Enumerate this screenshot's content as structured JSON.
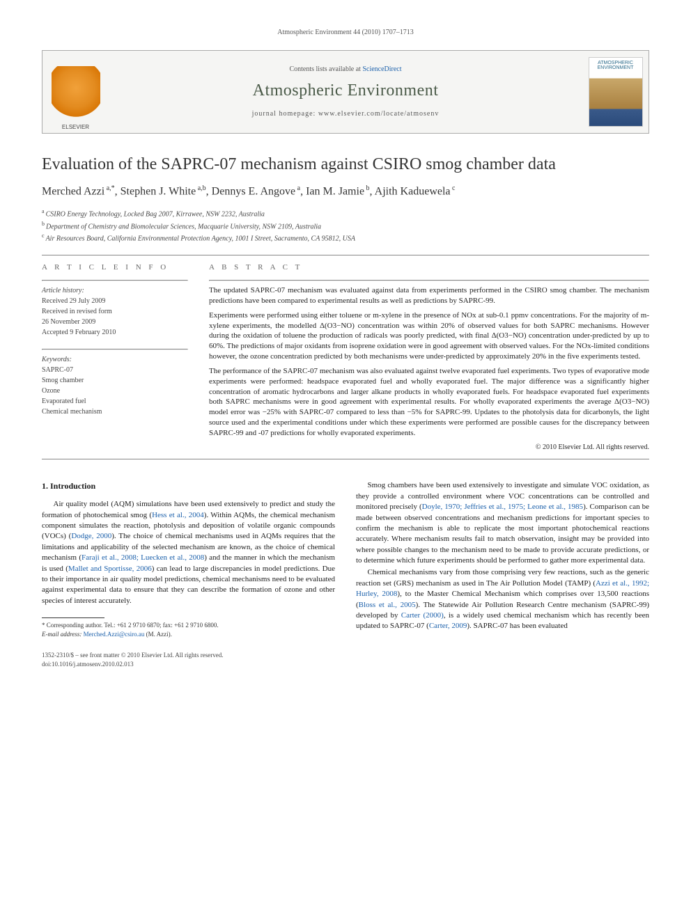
{
  "running_head": "Atmospheric Environment 44 (2010) 1707–1713",
  "masthead": {
    "contents_prefix": "Contents lists available at ",
    "contents_link": "ScienceDirect",
    "journal_name": "Atmospheric Environment",
    "homepage_label": "journal homepage: www.elsevier.com/locate/atmosenv",
    "publisher_logo_label": "ELSEVIER",
    "cover_caption": "ATMOSPHERIC ENVIRONMENT"
  },
  "article": {
    "title": "Evaluation of the SAPRC-07 mechanism against CSIRO smog chamber data",
    "authors_html_parts": [
      "Merched Azzi",
      " a,*",
      ", Stephen J. White",
      " a,b",
      ", Dennys E. Angove",
      " a",
      ", Ian M. Jamie",
      " b",
      ", Ajith Kaduewela",
      " c"
    ],
    "affiliations": [
      {
        "sup": "a",
        "text": "CSIRO Energy Technology, Locked Bag 2007, Kirrawee, NSW 2232, Australia"
      },
      {
        "sup": "b",
        "text": "Department of Chemistry and Biomolecular Sciences, Macquarie University, NSW 2109, Australia"
      },
      {
        "sup": "c",
        "text": "Air Resources Board, California Environmental Protection Agency, 1001 I Street, Sacramento, CA 95812, USA"
      }
    ]
  },
  "info": {
    "head": "A R T I C L E   I N F O",
    "history_label": "Article history:",
    "history": [
      "Received 29 July 2009",
      "Received in revised form",
      "26 November 2009",
      "Accepted 9 February 2010"
    ],
    "keywords_label": "Keywords:",
    "keywords": [
      "SAPRC-07",
      "Smog chamber",
      "Ozone",
      "Evaporated fuel",
      "Chemical mechanism"
    ]
  },
  "abstract": {
    "head": "A B S T R A C T",
    "paragraphs": [
      "The updated SAPRC-07 mechanism was evaluated against data from experiments performed in the CSIRO smog chamber. The mechanism predictions have been compared to experimental results as well as predictions by SAPRC-99.",
      "Experiments were performed using either toluene or m-xylene in the presence of NOx at sub-0.1 ppmv concentrations. For the majority of m-xylene experiments, the modelled Δ(O3−NO) concentration was within 20% of observed values for both SAPRC mechanisms. However during the oxidation of toluene the production of radicals was poorly predicted, with final Δ(O3−NO) concentration under-predicted by up to 60%. The predictions of major oxidants from isoprene oxidation were in good agreement with observed values. For the NOx-limited conditions however, the ozone concentration predicted by both mechanisms were under-predicted by approximately 20% in the five experiments tested.",
      "The performance of the SAPRC-07 mechanism was also evaluated against twelve evaporated fuel experiments. Two types of evaporative mode experiments were performed: headspace evaporated fuel and wholly evaporated fuel. The major difference was a significantly higher concentration of aromatic hydrocarbons and larger alkane products in wholly evaporated fuels. For headspace evaporated fuel experiments both SAPRC mechanisms were in good agreement with experimental results. For wholly evaporated experiments the average Δ(O3−NO) model error was −25% with SAPRC-07 compared to less than −5% for SAPRC-99. Updates to the photolysis data for dicarbonyls, the light source used and the experimental conditions under which these experiments were performed are possible causes for the discrepancy between SAPRC-99 and -07 predictions for wholly evaporated experiments."
    ],
    "copyright": "© 2010 Elsevier Ltd. All rights reserved."
  },
  "body": {
    "section_heading": "1. Introduction",
    "p1_pre": "Air quality model (AQM) simulations have been used extensively to predict and study the formation of photochemical smog (",
    "p1_ref1": "Hess et al., 2004",
    "p1_mid1": "). Within AQMs, the chemical mechanism component simulates the reaction, photolysis and deposition of volatile organic compounds (VOCs) (",
    "p1_ref2": "Dodge, 2000",
    "p1_mid2": "). The choice of chemical mechanisms used in AQMs requires that the limitations and applicability of the selected mechanism are known, as the choice of chemical mechanism (",
    "p1_ref3": "Faraji et al., 2008; Luecken et al., 2008",
    "p1_mid3": ") and the manner in which the mechanism is used (",
    "p1_ref4": "Mallet and Sportisse, 2006",
    "p1_post": ") can lead to large discrepancies in model predictions. Due to their importance in air quality model predictions, chemical mechanisms need to be evaluated against experimental data to ensure that they can describe the formation of ozone and other species of interest accurately.",
    "p2_pre": "Smog chambers have been used extensively to investigate and simulate VOC oxidation, as they provide a controlled environment where VOC concentrations can be controlled and monitored precisely (",
    "p2_ref1": "Doyle, 1970; Jeffries et al., 1975; Leone et al., 1985",
    "p2_post": "). Comparison can be made between observed concentrations and mechanism predictions for important species to confirm the mechanism is able to replicate the most important photochemical reactions accurately. Where mechanism results fail to match observation, insight may be provided into where possible changes to the mechanism need to be made to provide accurate predictions, or to determine which future experiments should be performed to gather more experimental data.",
    "p3_pre": "Chemical mechanisms vary from those comprising very few reactions, such as the generic reaction set (GRS) mechanism as used in The Air Pollution Model (TAMP) (",
    "p3_ref1": "Azzi et al., 1992; Hurley, 2008",
    "p3_mid1": "), to the Master Chemical Mechanism which comprises over 13,500 reactions (",
    "p3_ref2": "Bloss et al., 2005",
    "p3_mid2": "). The Statewide Air Pollution Research Centre mechanism (SAPRC-99) developed by ",
    "p3_ref3": "Carter (2000)",
    "p3_mid3": ", is a widely used chemical mechanism which has recently been updated to SAPRC-07 (",
    "p3_ref4": "Carter, 2009",
    "p3_post": "). SAPRC-07 has been evaluated"
  },
  "footnote": {
    "corr_label": "* Corresponding author. Tel.: +61 2 9710 6870; fax: +61 2 9710 6800.",
    "email_label": "E-mail address: ",
    "email": "Merched.Azzi@csiro.au",
    "email_suffix": " (M. Azzi)."
  },
  "footer": {
    "line1": "1352-2310/$ – see front matter © 2010 Elsevier Ltd. All rights reserved.",
    "line2": "doi:10.1016/j.atmosenv.2010.02.013"
  },
  "colors": {
    "link": "#1a5faa",
    "heading": "#4a5a48"
  }
}
